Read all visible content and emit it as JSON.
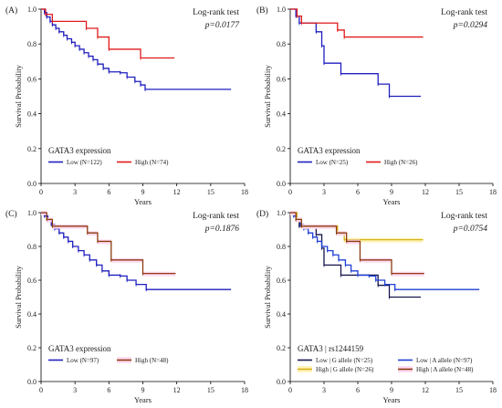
{
  "figure": {
    "background": "#ffffff"
  },
  "chart_data": [
    {
      "type": "line",
      "panel_label": "(A)",
      "annotation": {
        "line1": "Log-rank test",
        "line2": "p=0.0177"
      },
      "xlabel": "Years",
      "ylabel": "Survival Probability",
      "xlim": [
        0,
        18
      ],
      "ylim": [
        0,
        1.0
      ],
      "xticks": [
        0,
        3,
        6,
        9,
        12,
        15,
        18
      ],
      "yticks": [
        0.0,
        0.2,
        0.4,
        0.6,
        0.8,
        1.0
      ],
      "legend_title": "GATA3 expression",
      "legend_location": "bottom-left",
      "series": [
        {
          "name": "Low (N=122)",
          "color": "#1f1fbf",
          "x": [
            0,
            0.3,
            0.5,
            0.8,
            1.0,
            1.3,
            1.6,
            2.0,
            2.3,
            2.7,
            3.0,
            3.4,
            3.8,
            4.2,
            4.6,
            5.0,
            5.5,
            6.0,
            7.0,
            7.6,
            8.3,
            8.8,
            9.2,
            16.8
          ],
          "y": [
            1.0,
            0.98,
            0.955,
            0.93,
            0.91,
            0.89,
            0.87,
            0.85,
            0.83,
            0.81,
            0.79,
            0.77,
            0.75,
            0.73,
            0.71,
            0.685,
            0.66,
            0.64,
            0.635,
            0.61,
            0.585,
            0.565,
            0.54,
            0.54
          ]
        },
        {
          "name": "High (N=74)",
          "color": "#e01b1b",
          "x": [
            0,
            0.4,
            1.0,
            4.0,
            5.0,
            6.0,
            8.8,
            11.8
          ],
          "y": [
            1.0,
            0.97,
            0.93,
            0.89,
            0.84,
            0.77,
            0.72,
            0.72
          ]
        }
      ]
    },
    {
      "type": "line",
      "panel_label": "(B)",
      "annotation": {
        "line1": "Log-rank test",
        "line2": "p=0.0294"
      },
      "xlabel": "Years",
      "ylabel": "Survival Probability",
      "xlim": [
        0,
        18
      ],
      "ylim": [
        0,
        1.0
      ],
      "xticks": [
        0,
        3,
        6,
        9,
        12,
        15,
        18
      ],
      "yticks": [
        0.0,
        0.2,
        0.4,
        0.6,
        0.8,
        1.0
      ],
      "legend_title": "GATA3 expression",
      "legend_location": "bottom-left",
      "series": [
        {
          "name": "Low (N=25)",
          "color": "#1f1fbf",
          "x": [
            0,
            0.5,
            0.8,
            2.3,
            2.8,
            3.0,
            4.5,
            7.8,
            8.8,
            11.6
          ],
          "y": [
            1.0,
            0.96,
            0.92,
            0.87,
            0.79,
            0.69,
            0.63,
            0.57,
            0.5,
            0.5
          ]
        },
        {
          "name": "High (N=26)",
          "color": "#e01b1b",
          "x": [
            0,
            0.6,
            1.0,
            4.2,
            4.8,
            11.8
          ],
          "y": [
            1.0,
            0.96,
            0.92,
            0.88,
            0.84,
            0.84
          ]
        }
      ]
    },
    {
      "type": "line",
      "panel_label": "(C)",
      "annotation": {
        "line1": "Log-rank test",
        "line2": "p=0.1876"
      },
      "xlabel": "Years",
      "ylabel": "Survival Probability",
      "xlim": [
        0,
        18
      ],
      "ylim": [
        0,
        1.0
      ],
      "xticks": [
        0,
        3,
        6,
        9,
        12,
        15,
        18
      ],
      "yticks": [
        0.0,
        0.2,
        0.4,
        0.6,
        0.8,
        1.0
      ],
      "legend_title": "GATA3 expression",
      "legend_location": "bottom-left",
      "series": [
        {
          "name": "Low (N=97)",
          "color": "#1f1fbf",
          "x": [
            0,
            0.3,
            0.6,
            0.9,
            1.2,
            1.6,
            2.0,
            2.4,
            2.8,
            3.3,
            3.8,
            4.3,
            4.9,
            5.4,
            6.0,
            7.0,
            7.6,
            8.4,
            9.3,
            16.8
          ],
          "y": [
            1.0,
            0.98,
            0.955,
            0.93,
            0.905,
            0.88,
            0.855,
            0.83,
            0.8,
            0.775,
            0.75,
            0.72,
            0.69,
            0.655,
            0.63,
            0.625,
            0.6,
            0.575,
            0.545,
            0.545
          ]
        },
        {
          "name": "High (N=48)",
          "color": "#8b3a0f",
          "band_color": "#ffd6f0",
          "x": [
            0,
            0.5,
            1.0,
            4.1,
            5.0,
            6.2,
            9.0,
            11.9
          ],
          "y": [
            1.0,
            0.96,
            0.92,
            0.88,
            0.83,
            0.72,
            0.64,
            0.64
          ]
        }
      ]
    },
    {
      "type": "line",
      "panel_label": "(D)",
      "annotation": {
        "line1": "Log-rank test",
        "line2": "p=0.0754"
      },
      "xlabel": "Years",
      "ylabel": "Survival Probability",
      "xlim": [
        0,
        18
      ],
      "ylim": [
        0,
        1.0
      ],
      "xticks": [
        0,
        3,
        6,
        9,
        12,
        15,
        18
      ],
      "yticks": [
        0.0,
        0.2,
        0.4,
        0.6,
        0.8,
        1.0
      ],
      "legend_title": "GATA3 | rs1244159",
      "legend_location": "bottom",
      "series": [
        {
          "name": "Low | G allele (N=25)",
          "color": "#15154f",
          "x": [
            0,
            0.5,
            0.8,
            2.3,
            2.8,
            3.0,
            4.5,
            7.8,
            8.8,
            11.6
          ],
          "y": [
            1.0,
            0.96,
            0.92,
            0.87,
            0.79,
            0.69,
            0.63,
            0.57,
            0.5,
            0.5
          ]
        },
        {
          "name": "Low | A allele (N=97)",
          "color": "#1f3fd6",
          "x": [
            0,
            0.3,
            0.6,
            0.9,
            1.2,
            1.6,
            2.0,
            2.4,
            2.8,
            3.3,
            3.8,
            4.3,
            4.9,
            5.4,
            6.0,
            7.0,
            7.6,
            8.4,
            9.3,
            16.8
          ],
          "y": [
            1.0,
            0.98,
            0.955,
            0.93,
            0.905,
            0.88,
            0.855,
            0.83,
            0.8,
            0.775,
            0.75,
            0.72,
            0.69,
            0.655,
            0.63,
            0.625,
            0.6,
            0.575,
            0.545,
            0.545
          ]
        },
        {
          "name": "High | G allele (N=26)",
          "color": "#d9b01a",
          "band_color": "#fff3b0",
          "x": [
            0,
            0.6,
            1.0,
            4.2,
            4.8,
            11.8
          ],
          "y": [
            1.0,
            0.96,
            0.92,
            0.88,
            0.84,
            0.84
          ]
        },
        {
          "name": "High | A allele (N=48)",
          "color": "#8b3a0f",
          "band_color": "#ffd6f0",
          "x": [
            0,
            0.5,
            1.0,
            4.1,
            5.0,
            6.2,
            9.0,
            11.9
          ],
          "y": [
            1.0,
            0.96,
            0.92,
            0.88,
            0.83,
            0.72,
            0.64,
            0.64
          ]
        }
      ]
    }
  ]
}
